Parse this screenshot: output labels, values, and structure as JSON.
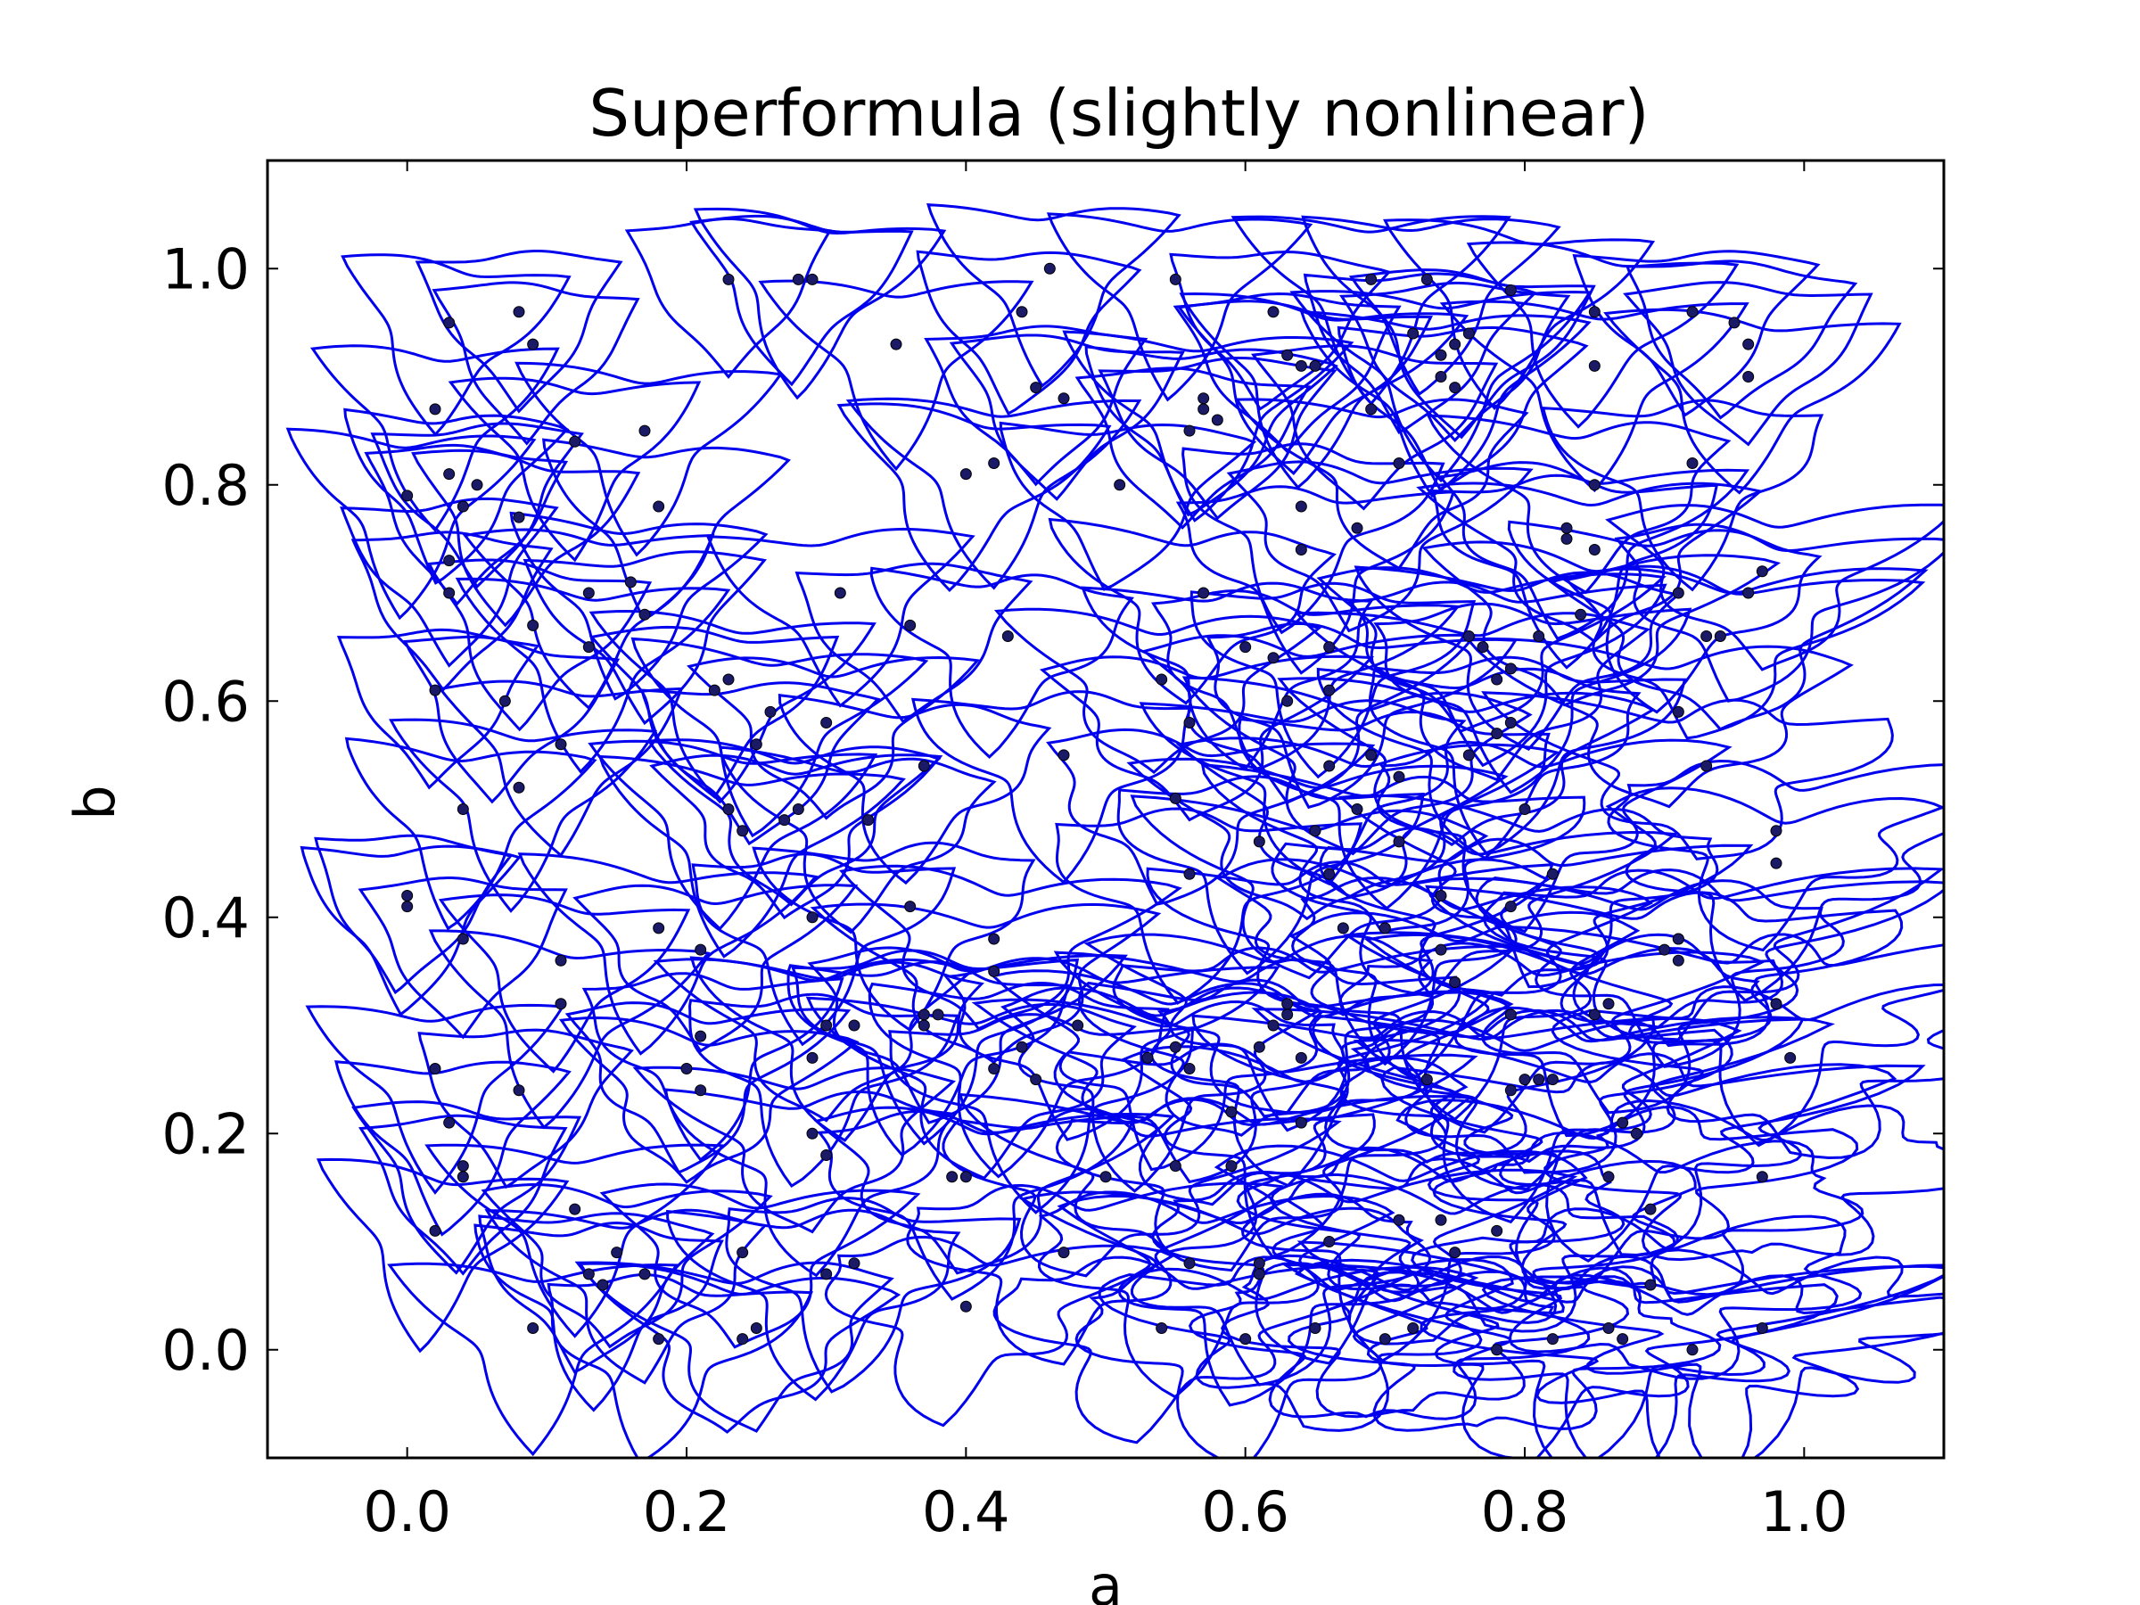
{
  "chart_data": {
    "type": "scatter",
    "title": "Superformula (slightly nonlinear)",
    "xlabel": "a",
    "ylabel": "b",
    "xlim": [
      -0.1,
      1.1
    ],
    "ylim": [
      -0.1,
      1.1
    ],
    "xticks": [
      0.0,
      0.2,
      0.4,
      0.6,
      0.8,
      1.0
    ],
    "yticks": [
      0.0,
      0.2,
      0.4,
      0.6,
      0.8,
      1.0
    ],
    "xtick_labels": [
      "0.0",
      "0.2",
      "0.4",
      "0.6",
      "0.8",
      "1.0"
    ],
    "ytick_labels": [
      "0.0",
      "0.2",
      "0.4",
      "0.6",
      "0.8",
      "1.0"
    ],
    "grid": false,
    "outline_color": "#0000ee",
    "point_color": "#1a1a66",
    "points": [
      [
        0.23,
        0.99
      ],
      [
        0.28,
        0.99
      ],
      [
        0.29,
        0.99
      ],
      [
        0.35,
        0.93
      ],
      [
        0.46,
        1.0
      ],
      [
        0.44,
        0.96
      ],
      [
        0.45,
        0.89
      ],
      [
        0.47,
        0.88
      ],
      [
        0.4,
        0.81
      ],
      [
        0.42,
        0.82
      ],
      [
        0.55,
        0.99
      ],
      [
        0.51,
        0.8
      ],
      [
        0.08,
        0.96
      ],
      [
        0.09,
        0.93
      ],
      [
        0.03,
        0.95
      ],
      [
        0.02,
        0.87
      ],
      [
        0.0,
        0.79
      ],
      [
        0.03,
        0.81
      ],
      [
        0.05,
        0.8
      ],
      [
        0.04,
        0.78
      ],
      [
        0.08,
        0.77
      ],
      [
        0.12,
        0.84
      ],
      [
        0.17,
        0.85
      ],
      [
        0.18,
        0.78
      ],
      [
        0.03,
        0.73
      ],
      [
        0.03,
        0.7
      ],
      [
        0.09,
        0.67
      ],
      [
        0.13,
        0.7
      ],
      [
        0.13,
        0.65
      ],
      [
        0.16,
        0.71
      ],
      [
        0.17,
        0.68
      ],
      [
        0.02,
        0.61
      ],
      [
        0.07,
        0.6
      ],
      [
        0.11,
        0.56
      ],
      [
        0.08,
        0.52
      ],
      [
        0.04,
        0.5
      ],
      [
        0.31,
        0.7
      ],
      [
        0.36,
        0.67
      ],
      [
        0.43,
        0.66
      ],
      [
        0.22,
        0.61
      ],
      [
        0.23,
        0.62
      ],
      [
        0.26,
        0.59
      ],
      [
        0.3,
        0.58
      ],
      [
        0.25,
        0.56
      ],
      [
        0.37,
        0.54
      ],
      [
        0.47,
        0.55
      ],
      [
        0.23,
        0.5
      ],
      [
        0.24,
        0.48
      ],
      [
        0.27,
        0.49
      ],
      [
        0.28,
        0.5
      ],
      [
        0.33,
        0.49
      ],
      [
        0.36,
        0.41
      ],
      [
        0.29,
        0.4
      ],
      [
        0.18,
        0.39
      ],
      [
        0.21,
        0.37
      ],
      [
        0.0,
        0.41
      ],
      [
        0.0,
        0.42
      ],
      [
        0.04,
        0.38
      ],
      [
        0.11,
        0.36
      ],
      [
        0.11,
        0.32
      ],
      [
        0.02,
        0.26
      ],
      [
        0.03,
        0.21
      ],
      [
        0.08,
        0.24
      ],
      [
        0.04,
        0.16
      ],
      [
        0.04,
        0.17
      ],
      [
        0.02,
        0.11
      ],
      [
        0.12,
        0.13
      ],
      [
        0.15,
        0.09
      ],
      [
        0.13,
        0.07
      ],
      [
        0.17,
        0.07
      ],
      [
        0.14,
        0.06
      ],
      [
        0.18,
        0.01
      ],
      [
        0.09,
        0.02
      ],
      [
        0.24,
        0.09
      ],
      [
        0.24,
        0.01
      ],
      [
        0.25,
        0.02
      ],
      [
        0.3,
        0.07
      ],
      [
        0.32,
        0.08
      ],
      [
        0.39,
        0.16
      ],
      [
        0.4,
        0.16
      ],
      [
        0.4,
        0.04
      ],
      [
        0.29,
        0.2
      ],
      [
        0.3,
        0.18
      ],
      [
        0.29,
        0.27
      ],
      [
        0.21,
        0.29
      ],
      [
        0.2,
        0.26
      ],
      [
        0.21,
        0.24
      ],
      [
        0.3,
        0.3
      ],
      [
        0.32,
        0.3
      ],
      [
        0.37,
        0.3
      ],
      [
        0.37,
        0.31
      ],
      [
        0.38,
        0.31
      ],
      [
        0.42,
        0.38
      ],
      [
        0.42,
        0.35
      ],
      [
        0.42,
        0.26
      ],
      [
        0.44,
        0.28
      ],
      [
        0.45,
        0.25
      ],
      [
        0.48,
        0.3
      ],
      [
        0.5,
        0.16
      ],
      [
        0.47,
        0.09
      ],
      [
        0.53,
        0.27
      ],
      [
        0.55,
        0.28
      ],
      [
        0.56,
        0.26
      ],
      [
        0.55,
        0.17
      ],
      [
        0.59,
        0.22
      ],
      [
        0.59,
        0.17
      ],
      [
        0.56,
        0.08
      ],
      [
        0.61,
        0.07
      ],
      [
        0.61,
        0.08
      ],
      [
        0.62,
        0.3
      ],
      [
        0.61,
        0.28
      ],
      [
        0.63,
        0.31
      ],
      [
        0.64,
        0.27
      ],
      [
        0.64,
        0.21
      ],
      [
        0.63,
        0.32
      ],
      [
        0.56,
        0.44
      ],
      [
        0.55,
        0.51
      ],
      [
        0.56,
        0.58
      ],
      [
        0.54,
        0.62
      ],
      [
        0.57,
        0.7
      ],
      [
        0.6,
        0.65
      ],
      [
        0.61,
        0.47
      ],
      [
        0.62,
        0.64
      ],
      [
        0.63,
        0.6
      ],
      [
        0.65,
        0.48
      ],
      [
        0.66,
        0.44
      ],
      [
        0.66,
        0.54
      ],
      [
        0.66,
        0.65
      ],
      [
        0.66,
        0.61
      ],
      [
        0.67,
        0.39
      ],
      [
        0.68,
        0.5
      ],
      [
        0.69,
        0.55
      ],
      [
        0.7,
        0.39
      ],
      [
        0.71,
        0.53
      ],
      [
        0.71,
        0.47
      ],
      [
        0.73,
        0.25
      ],
      [
        0.74,
        0.42
      ],
      [
        0.74,
        0.37
      ],
      [
        0.75,
        0.34
      ],
      [
        0.74,
        0.12
      ],
      [
        0.75,
        0.09
      ],
      [
        0.77,
        0.65
      ],
      [
        0.76,
        0.66
      ],
      [
        0.76,
        0.55
      ],
      [
        0.78,
        0.62
      ],
      [
        0.78,
        0.57
      ],
      [
        0.79,
        0.58
      ],
      [
        0.79,
        0.63
      ],
      [
        0.79,
        0.41
      ],
      [
        0.79,
        0.31
      ],
      [
        0.79,
        0.24
      ],
      [
        0.78,
        0.11
      ],
      [
        0.78,
        0.0
      ],
      [
        0.8,
        0.25
      ],
      [
        0.81,
        0.25
      ],
      [
        0.82,
        0.25
      ],
      [
        0.8,
        0.5
      ],
      [
        0.81,
        0.66
      ],
      [
        0.82,
        0.44
      ],
      [
        0.83,
        0.75
      ],
      [
        0.83,
        0.76
      ],
      [
        0.84,
        0.68
      ],
      [
        0.85,
        0.74
      ],
      [
        0.85,
        0.8
      ],
      [
        0.85,
        0.31
      ],
      [
        0.86,
        0.32
      ],
      [
        0.86,
        0.16
      ],
      [
        0.87,
        0.21
      ],
      [
        0.87,
        0.01
      ],
      [
        0.88,
        0.2
      ],
      [
        0.89,
        0.06
      ],
      [
        0.9,
        0.37
      ],
      [
        0.91,
        0.36
      ],
      [
        0.91,
        0.38
      ],
      [
        0.91,
        0.38
      ],
      [
        0.91,
        0.59
      ],
      [
        0.91,
        0.7
      ],
      [
        0.92,
        0.82
      ],
      [
        0.93,
        0.54
      ],
      [
        0.93,
        0.66
      ],
      [
        0.94,
        0.66
      ],
      [
        0.92,
        0.96
      ],
      [
        0.95,
        0.95
      ],
      [
        0.96,
        0.93
      ],
      [
        0.96,
        0.9
      ],
      [
        0.96,
        0.7
      ],
      [
        0.97,
        0.72
      ],
      [
        0.98,
        0.48
      ],
      [
        0.98,
        0.45
      ],
      [
        0.99,
        0.27
      ],
      [
        0.97,
        0.16
      ],
      [
        0.97,
        0.02
      ],
      [
        0.92,
        0.0
      ],
      [
        0.98,
        0.32
      ],
      [
        0.62,
        0.96
      ],
      [
        0.63,
        0.92
      ],
      [
        0.64,
        0.91
      ],
      [
        0.65,
        0.91
      ],
      [
        0.69,
        0.99
      ],
      [
        0.73,
        0.99
      ],
      [
        0.72,
        0.94
      ],
      [
        0.75,
        0.93
      ],
      [
        0.76,
        0.94
      ],
      [
        0.79,
        0.98
      ],
      [
        0.74,
        0.92
      ],
      [
        0.74,
        0.9
      ],
      [
        0.75,
        0.89
      ],
      [
        0.71,
        0.82
      ],
      [
        0.69,
        0.87
      ],
      [
        0.85,
        0.96
      ],
      [
        0.85,
        0.91
      ],
      [
        0.57,
        0.88
      ],
      [
        0.57,
        0.87
      ],
      [
        0.58,
        0.86
      ],
      [
        0.56,
        0.85
      ],
      [
        0.64,
        0.78
      ],
      [
        0.64,
        0.74
      ],
      [
        0.68,
        0.76
      ],
      [
        0.54,
        0.02
      ],
      [
        0.6,
        0.01
      ],
      [
        0.65,
        0.02
      ],
      [
        0.7,
        0.01
      ],
      [
        0.72,
        0.02
      ],
      [
        0.82,
        0.01
      ],
      [
        0.86,
        0.02
      ],
      [
        0.66,
        0.1
      ],
      [
        0.71,
        0.12
      ],
      [
        0.89,
        0.13
      ]
    ]
  }
}
